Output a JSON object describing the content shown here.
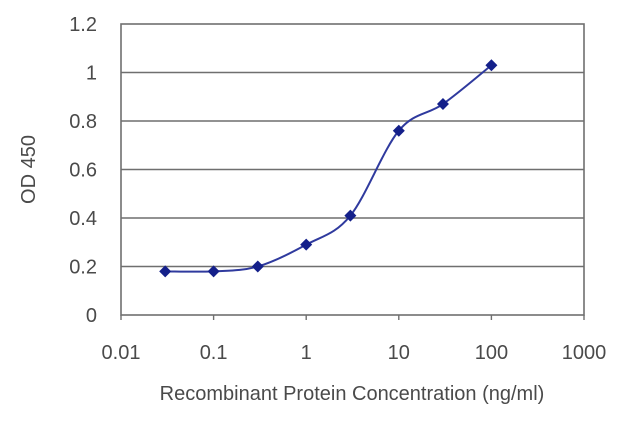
{
  "chart_data": {
    "type": "line",
    "title": "",
    "xlabel": "Recombinant Protein Concentration (ng/ml)",
    "ylabel": "OD 450",
    "x_scale": "log",
    "xlim": [
      0.01,
      1000
    ],
    "ylim": [
      0,
      1.2
    ],
    "grid": "horizontal",
    "x_ticks": [
      "0.01",
      "0.1",
      "1",
      "10",
      "100",
      "1000"
    ],
    "y_ticks": [
      "0",
      "0.2",
      "0.4",
      "0.6",
      "0.8",
      "1",
      "1.2"
    ],
    "series": [
      {
        "x": [
          0.03,
          0.1,
          0.3,
          1,
          3,
          10,
          30,
          100
        ],
        "y": [
          0.18,
          0.18,
          0.2,
          0.29,
          0.41,
          0.76,
          0.87,
          1.03
        ]
      }
    ],
    "line_color": "#2f3a9e",
    "marker_color": "#14208a",
    "marker": "diamond"
  }
}
